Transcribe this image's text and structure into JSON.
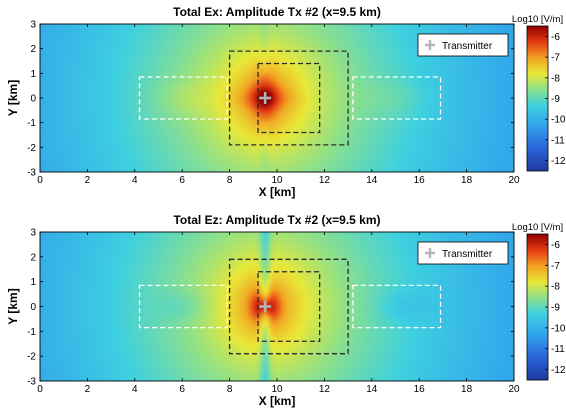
{
  "colors": {
    "map_low": "#1f3fa8",
    "map_high": "#8b0000",
    "outer_box": "#2b2b2b",
    "side_box": "#ffffff",
    "marker": "#b4b4b4"
  },
  "chart_data": [
    {
      "type": "heatmap",
      "title": "Total Ex: Amplitude Tx #2 (x=9.5 km)",
      "xlabel": "X [km]",
      "ylabel": "Y [km]",
      "xlim": [
        0,
        20
      ],
      "ylim": [
        -3,
        3
      ],
      "xticks": [
        "0",
        "2",
        "4",
        "6",
        "8",
        "10",
        "12",
        "14",
        "16",
        "18",
        "20"
      ],
      "yticks": [
        "3",
        "2",
        "1",
        "0",
        "-1",
        "-2",
        "-3"
      ],
      "colorbar": {
        "label": "Log10 [V/m]",
        "range": [
          -12.5,
          -5.5
        ],
        "ticks": [
          "-6",
          "-7",
          "-8",
          "-9",
          "-10",
          "-11",
          "-12"
        ]
      },
      "legend": {
        "entry": "Transmitter",
        "position": "top-right"
      },
      "transmitter": {
        "x": 9.5,
        "y": 0
      },
      "boxes": {
        "outer": {
          "x0": 8.0,
          "x1": 13.0,
          "y0": -1.9,
          "y1": 1.9
        },
        "inner": {
          "x0": 9.2,
          "x1": 11.8,
          "y0": -1.4,
          "y1": 1.4
        },
        "left": {
          "x0": 4.2,
          "x1": 7.9,
          "y0": -0.85,
          "y1": 0.85
        },
        "right": {
          "x0": 13.2,
          "x1": 16.9,
          "y0": -0.85,
          "y1": 0.85
        }
      },
      "component": "ex"
    },
    {
      "type": "heatmap",
      "title": "Total Ez: Amplitude Tx #2 (x=9.5 km)",
      "xlabel": "X [km]",
      "ylabel": "Y [km]",
      "xlim": [
        0,
        20
      ],
      "ylim": [
        -3,
        3
      ],
      "xticks": [
        "0",
        "2",
        "4",
        "6",
        "8",
        "10",
        "12",
        "14",
        "16",
        "18",
        "20"
      ],
      "yticks": [
        "3",
        "2",
        "1",
        "0",
        "-1",
        "-2",
        "-3"
      ],
      "colorbar": {
        "label": "Log10 [V/m]",
        "range": [
          -12.5,
          -5.5
        ],
        "ticks": [
          "-6",
          "-7",
          "-8",
          "-9",
          "-10",
          "-11",
          "-12"
        ]
      },
      "legend": {
        "entry": "Transmitter",
        "position": "top-right"
      },
      "transmitter": {
        "x": 9.5,
        "y": 0
      },
      "boxes": {
        "outer": {
          "x0": 8.0,
          "x1": 13.0,
          "y0": -1.9,
          "y1": 1.9
        },
        "inner": {
          "x0": 9.2,
          "x1": 11.8,
          "y0": -1.4,
          "y1": 1.4
        },
        "left": {
          "x0": 4.2,
          "x1": 7.9,
          "y0": -0.85,
          "y1": 0.85
        },
        "right": {
          "x0": 13.2,
          "x1": 16.9,
          "y0": -0.85,
          "y1": 0.85
        }
      },
      "component": "ez"
    }
  ]
}
